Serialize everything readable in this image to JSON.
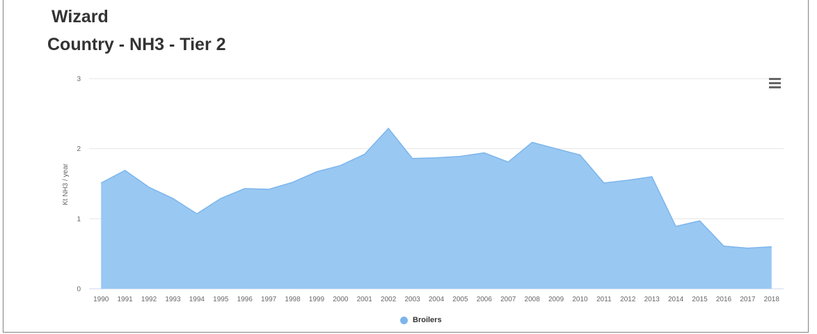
{
  "titles": [
    "Wizard",
    "Country  - NH3 - Tier 2"
  ],
  "menu_icon": "hamburger-menu-icon",
  "colors": {
    "series_fill": "#99c8f2",
    "series_line": "#7cb5ec",
    "grid": "#e6e6e6",
    "axis": "#ccd6eb",
    "tick_label": "#666666"
  },
  "chart_data": {
    "type": "area",
    "title": "Wizard",
    "subtitle": "Country  - NH3 - Tier 2",
    "xlabel": "",
    "ylabel": "Kt NH3 / year",
    "categories": [
      "1990",
      "1991",
      "1992",
      "1993",
      "1994",
      "1995",
      "1996",
      "1997",
      "1998",
      "1999",
      "2000",
      "2001",
      "2002",
      "2003",
      "2004",
      "2005",
      "2006",
      "2007",
      "2008",
      "2009",
      "2010",
      "2011",
      "2012",
      "2013",
      "2014",
      "2015",
      "2016",
      "2017",
      "2018"
    ],
    "series": [
      {
        "name": "Broilers",
        "values": [
          1.51,
          1.69,
          1.45,
          1.29,
          1.07,
          1.29,
          1.43,
          1.42,
          1.52,
          1.67,
          1.76,
          1.92,
          2.29,
          1.86,
          1.87,
          1.89,
          1.94,
          1.81,
          2.09,
          2.0,
          1.91,
          1.51,
          1.55,
          1.6,
          0.89,
          0.97,
          0.61,
          0.58,
          0.6
        ]
      }
    ],
    "ylim": [
      0,
      3
    ],
    "yticks": [
      0,
      1,
      2,
      3
    ],
    "grid": true,
    "legend_position": "bottom-center"
  },
  "legend": {
    "label": "Broilers"
  }
}
